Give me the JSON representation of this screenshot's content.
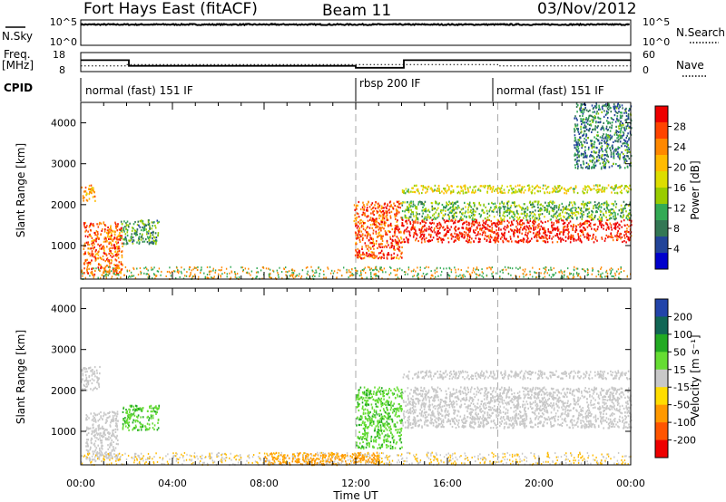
{
  "header": {
    "station": "Fort Hays East (fitACF)",
    "beam": "Beam 11",
    "date": "03/Nov/2012"
  },
  "panels": {
    "nsky": {
      "label": "N.Sky",
      "ticks": [
        "10^5",
        "10^0"
      ],
      "right_label": "N.Search",
      "right_ticks": [
        "10^5",
        "10^0"
      ]
    },
    "freq": {
      "label_top": "Freq.",
      "label_unit": "[MHz]",
      "ticks": [
        "18",
        "8"
      ],
      "right_label": "Nave",
      "right_ticks": [
        "60",
        "0"
      ]
    },
    "cpid": {
      "label": "CPID"
    }
  },
  "x_ticks": [
    "00:00",
    "04:00",
    "08:00",
    "12:00",
    "16:00",
    "20:00",
    "00:00"
  ],
  "x_axis_label": "Time UT",
  "power_cbar": {
    "title": "Power [dB]",
    "ticks": [
      "28",
      "24",
      "20",
      "16",
      "12",
      "8",
      "4"
    ],
    "colors": [
      "#ee0000",
      "#ff4400",
      "#ff8800",
      "#ffbb00",
      "#dddd00",
      "#99cc00",
      "#33aa55",
      "#337755",
      "#224499",
      "#0000cc"
    ]
  },
  "velocity_cbar": {
    "title": "Velocity [m s⁻¹]",
    "ticks": [
      "200",
      "100",
      "50",
      "15",
      "-15",
      "-50",
      "-100",
      "-200"
    ],
    "colors": [
      "#2244aa",
      "#116655",
      "#22aa22",
      "#66dd33",
      "#c8c8c8",
      "#ffdd00",
      "#ff9900",
      "#ff5500",
      "#ee0000"
    ]
  },
  "chart_data": [
    {
      "type": "line",
      "title": "N.Sky / N.Search",
      "yscale": "log",
      "ylim_log10": [
        0,
        5
      ],
      "series": [
        {
          "name": "N.Sky",
          "style": "solid",
          "x_hours": [
            0,
            24
          ],
          "y_log10": [
            4.1,
            4.1
          ]
        },
        {
          "name": "N.Search",
          "style": "dotted",
          "x_hours": [
            0,
            24
          ],
          "y_log10": [
            4.0,
            4.0
          ]
        }
      ]
    },
    {
      "type": "line",
      "title": "Freq. / Nave",
      "ylim_freq_MHz": [
        8,
        18
      ],
      "ylim_nave": [
        0,
        60
      ],
      "series": [
        {
          "name": "Freq.",
          "unit": "MHz",
          "style": "solid",
          "x_hours": [
            0,
            2.1,
            2.1,
            12.0,
            12.0,
            14.1,
            14.1,
            24
          ],
          "y": [
            14,
            14,
            11,
            11,
            10,
            10,
            14,
            14
          ]
        },
        {
          "name": "Nave",
          "style": "dotted",
          "x_hours": [
            0,
            2,
            2,
            18.2,
            18.2,
            24
          ],
          "y": [
            18,
            18,
            22,
            22,
            18,
            18
          ]
        }
      ]
    },
    {
      "type": "table",
      "title": "CPID",
      "segments": [
        {
          "start": "00:00",
          "end": "12:00",
          "label": "normal (fast) 151 IF"
        },
        {
          "start": "12:00",
          "end": "18:00",
          "label": "rbsp 200 IF"
        },
        {
          "start": "18:00",
          "end": "24:00",
          "label": "normal (fast) 151 IF"
        }
      ]
    },
    {
      "type": "heatmap",
      "title": "Power",
      "xlabel": "",
      "ylabel": "Slant Range [km]",
      "xlim_hours": [
        0,
        24
      ],
      "ylim_km": [
        180,
        4500
      ],
      "yticks": [
        1000,
        2000,
        3000,
        4000
      ],
      "colorbar": "Power [dB]",
      "structures": [
        {
          "t": [
            0.0,
            0.6
          ],
          "r": [
            2100,
            2500
          ],
          "value_dB": 22
        },
        {
          "t": [
            0.1,
            1.8
          ],
          "r": [
            300,
            1600
          ],
          "value_dB": 24
        },
        {
          "t": [
            1.7,
            3.4
          ],
          "r": [
            1050,
            1650
          ],
          "value_dB": 10
        },
        {
          "t": [
            11.9,
            14.0
          ],
          "r": [
            700,
            2100
          ],
          "value_dB": 25
        },
        {
          "t": [
            14.0,
            24.0
          ],
          "r": [
            1100,
            1650
          ],
          "value_dB": 28
        },
        {
          "t": [
            14.0,
            24.0
          ],
          "r": [
            1650,
            2100
          ],
          "value_dB": 12
        },
        {
          "t": [
            14.0,
            24.0
          ],
          "r": [
            2300,
            2500
          ],
          "value_dB": 16
        },
        {
          "t": [
            21.5,
            24.0
          ],
          "r": [
            2900,
            4500
          ],
          "value_dB": 8
        }
      ]
    },
    {
      "type": "heatmap",
      "title": "Velocity",
      "xlabel": "Time UT",
      "ylabel": "Slant Range [km]",
      "xlim_hours": [
        0,
        24
      ],
      "ylim_km": [
        180,
        4500
      ],
      "yticks": [
        1000,
        2000,
        3000,
        4000
      ],
      "colorbar": "Velocity [m s⁻¹]",
      "structures": [
        {
          "t": [
            0.0,
            0.8
          ],
          "r": [
            2000,
            2600
          ],
          "value_ms": 0
        },
        {
          "t": [
            0.2,
            1.6
          ],
          "r": [
            300,
            1500
          ],
          "value_ms": 0
        },
        {
          "t": [
            1.8,
            3.4
          ],
          "r": [
            1050,
            1650
          ],
          "value_ms": 30
        },
        {
          "t": [
            8.0,
            13.0
          ],
          "r": [
            200,
            500
          ],
          "value_ms": -40
        },
        {
          "t": [
            12.0,
            14.0
          ],
          "r": [
            600,
            2100
          ],
          "value_ms": 30
        },
        {
          "t": [
            14.0,
            24.0
          ],
          "r": [
            1100,
            2100
          ],
          "value_ms": 0
        },
        {
          "t": [
            14.0,
            24.0
          ],
          "r": [
            2300,
            2500
          ],
          "value_ms": 0
        }
      ]
    }
  ]
}
